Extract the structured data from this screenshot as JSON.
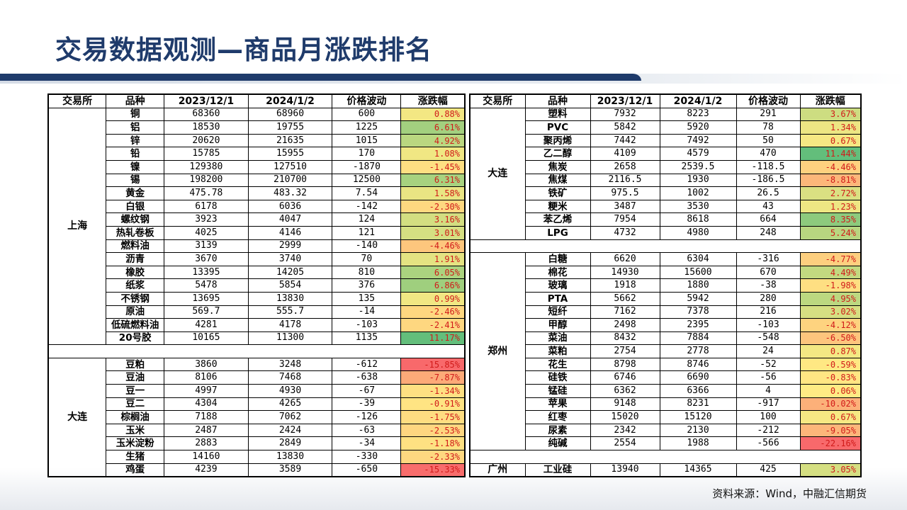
{
  "title": "交易数据观测—商品月涨跌排名",
  "source": "资料来源：Wind，中融汇信期货",
  "headers": [
    "交易所",
    "品种",
    "2023/12/1",
    "2024/1/2",
    "价格波动",
    "涨跌幅"
  ],
  "colors": {
    "title": "#1f3b6b",
    "pct_text": "#d11a1a",
    "scale_low": "#f8696b",
    "scale_mid": "#ffeb84",
    "scale_high": "#63be7b"
  },
  "left": {
    "groups": [
      {
        "exchange": "上海",
        "rows": [
          [
            "铜",
            "68360",
            "68960",
            "600",
            "0.88%"
          ],
          [
            "铝",
            "18530",
            "19755",
            "1225",
            "6.61%"
          ],
          [
            "锌",
            "20620",
            "21635",
            "1015",
            "4.92%"
          ],
          [
            "铅",
            "15785",
            "15955",
            "170",
            "1.08%"
          ],
          [
            "镍",
            "129380",
            "127510",
            "-1870",
            "-1.45%"
          ],
          [
            "锡",
            "198200",
            "210700",
            "12500",
            "6.31%"
          ],
          [
            "黄金",
            "475.78",
            "483.32",
            "7.54",
            "1.58%"
          ],
          [
            "白银",
            "6178",
            "6036",
            "-142",
            "-2.30%"
          ],
          [
            "螺纹钢",
            "3923",
            "4047",
            "124",
            "3.16%"
          ],
          [
            "热轧卷板",
            "4025",
            "4146",
            "121",
            "3.01%"
          ],
          [
            "燃料油",
            "3139",
            "2999",
            "-140",
            "-4.46%"
          ],
          [
            "沥青",
            "3670",
            "3740",
            "70",
            "1.91%"
          ],
          [
            "橡胶",
            "13395",
            "14205",
            "810",
            "6.05%"
          ],
          [
            "纸浆",
            "5478",
            "5854",
            "376",
            "6.86%"
          ],
          [
            "不锈钢",
            "13695",
            "13830",
            "135",
            "0.99%"
          ],
          [
            "原油",
            "569.7",
            "555.7",
            "-14",
            "-2.46%"
          ],
          [
            "低硫燃料油",
            "4281",
            "4178",
            "-103",
            "-2.41%"
          ],
          [
            "20号胶",
            "10165",
            "11300",
            "1135",
            "11.17%"
          ]
        ]
      },
      {
        "exchange": "大连",
        "rows": [
          [
            "豆粕",
            "3860",
            "3248",
            "-612",
            "-15.85%"
          ],
          [
            "豆油",
            "8106",
            "7468",
            "-638",
            "-7.87%"
          ],
          [
            "豆一",
            "4997",
            "4930",
            "-67",
            "-1.34%"
          ],
          [
            "豆二",
            "4304",
            "4265",
            "-39",
            "-0.91%"
          ],
          [
            "棕榈油",
            "7188",
            "7062",
            "-126",
            "-1.75%"
          ],
          [
            "玉米",
            "2487",
            "2424",
            "-63",
            "-2.53%"
          ],
          [
            "玉米淀粉",
            "2883",
            "2849",
            "-34",
            "-1.18%"
          ],
          [
            "生猪",
            "14160",
            "13830",
            "-330",
            "-2.33%"
          ],
          [
            "鸡蛋",
            "4239",
            "3589",
            "-650",
            "-15.33%"
          ]
        ]
      }
    ]
  },
  "right": {
    "groups": [
      {
        "exchange": "大连",
        "rows": [
          [
            "塑料",
            "7932",
            "8223",
            "291",
            "3.67%"
          ],
          [
            "PVC",
            "5842",
            "5920",
            "78",
            "1.34%"
          ],
          [
            "聚丙烯",
            "7442",
            "7492",
            "50",
            "0.67%"
          ],
          [
            "乙二醇",
            "4109",
            "4579",
            "470",
            "11.44%"
          ],
          [
            "焦炭",
            "2658",
            "2539.5",
            "-118.5",
            "-4.46%"
          ],
          [
            "焦煤",
            "2116.5",
            "1930",
            "-186.5",
            "-8.81%"
          ],
          [
            "铁矿",
            "975.5",
            "1002",
            "26.5",
            "2.72%"
          ],
          [
            "粳米",
            "3487",
            "3530",
            "43",
            "1.23%"
          ],
          [
            "苯乙烯",
            "7954",
            "8618",
            "664",
            "8.35%"
          ],
          [
            "LPG",
            "4732",
            "4980",
            "248",
            "5.24%"
          ]
        ]
      },
      {
        "exchange": "郑州",
        "rows": [
          [
            "白糖",
            "6620",
            "6304",
            "-316",
            "-4.77%"
          ],
          [
            "棉花",
            "14930",
            "15600",
            "670",
            "4.49%"
          ],
          [
            "玻璃",
            "1918",
            "1880",
            "-38",
            "-1.98%"
          ],
          [
            "PTA",
            "5662",
            "5942",
            "280",
            "4.95%"
          ],
          [
            "短纤",
            "7162",
            "7378",
            "216",
            "3.02%"
          ],
          [
            "甲醇",
            "2498",
            "2395",
            "-103",
            "-4.12%"
          ],
          [
            "菜油",
            "8432",
            "7884",
            "-548",
            "-6.50%"
          ],
          [
            "菜粕",
            "2754",
            "2778",
            "24",
            "0.87%"
          ],
          [
            "花生",
            "8798",
            "8746",
            "-52",
            "-0.59%"
          ],
          [
            "硅铁",
            "6746",
            "6690",
            "-56",
            "-0.83%"
          ],
          [
            "锰硅",
            "6362",
            "6366",
            "4",
            "0.06%"
          ],
          [
            "苹果",
            "9148",
            "8231",
            "-917",
            "-10.02%"
          ],
          [
            "红枣",
            "15020",
            "15120",
            "100",
            "0.67%"
          ],
          [
            "尿素",
            "2342",
            "2130",
            "-212",
            "-9.05%"
          ],
          [
            "纯碱",
            "2554",
            "1988",
            "-566",
            "-22.16%"
          ]
        ]
      },
      {
        "exchange": "广州",
        "rows": [
          [
            "工业硅",
            "13940",
            "14365",
            "425",
            "3.05%"
          ]
        ]
      }
    ]
  }
}
